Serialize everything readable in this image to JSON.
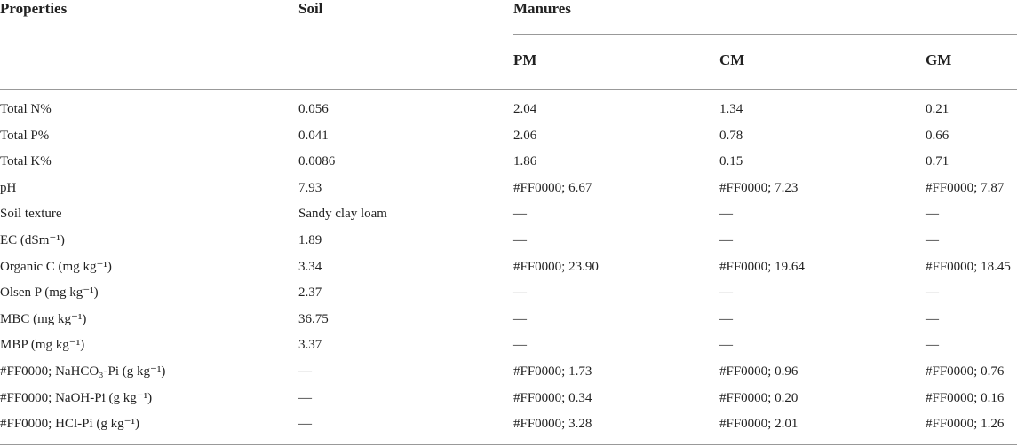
{
  "table": {
    "header": [
      [
        "Properties",
        "Soil",
        "Manures"
      ],
      [
        "PM",
        "CM",
        "GM"
      ]
    ],
    "rows": [
      [
        "Total N%",
        "0.056",
        "2.04",
        "1.34",
        "0.21"
      ],
      [
        "Total P%",
        "0.041",
        "2.06",
        "0.78",
        "0.66"
      ],
      [
        "Total K%",
        "0.0086",
        "1.86",
        "0.15",
        "0.71"
      ],
      [
        "pH",
        "7.93",
        "#FF0000; 6.67",
        "#FF0000; 7.23",
        "#FF0000; 7.87"
      ],
      [
        "Soil texture",
        "Sandy clay loam",
        "—",
        "—",
        "—"
      ],
      [
        "EC (dSm⁻¹)",
        "1.89",
        "—",
        "—",
        "—"
      ],
      [
        "Organic C (mg kg⁻¹)",
        "3.34",
        "#FF0000; 23.90",
        "#FF0000; 19.64",
        "#FF0000; 18.45"
      ],
      [
        "Olsen P (mg kg⁻¹)",
        "2.37",
        "—",
        "—",
        "—"
      ],
      [
        "MBC (mg kg⁻¹)",
        "36.75",
        "—",
        "—",
        "—"
      ],
      [
        "MBP (mg kg⁻¹)",
        "3.37",
        "—",
        "—",
        "—"
      ],
      [
        "#FF0000; NaHCO₃-Pi (g kg⁻¹)",
        "—",
        "#FF0000; 1.73",
        "#FF0000; 0.96",
        "#FF0000; 0.76"
      ],
      [
        "#FF0000; NaOH-Pi (g kg⁻¹)",
        "—",
        "#FF0000; 0.34",
        "#FF0000; 0.20",
        "#FF0000; 0.16"
      ],
      [
        "#FF0000; HCl-Pi (g kg⁻¹)",
        "—",
        "#FF0000; 3.28",
        "#FF0000; 2.01",
        "#FF0000; 1.26"
      ]
    ]
  }
}
